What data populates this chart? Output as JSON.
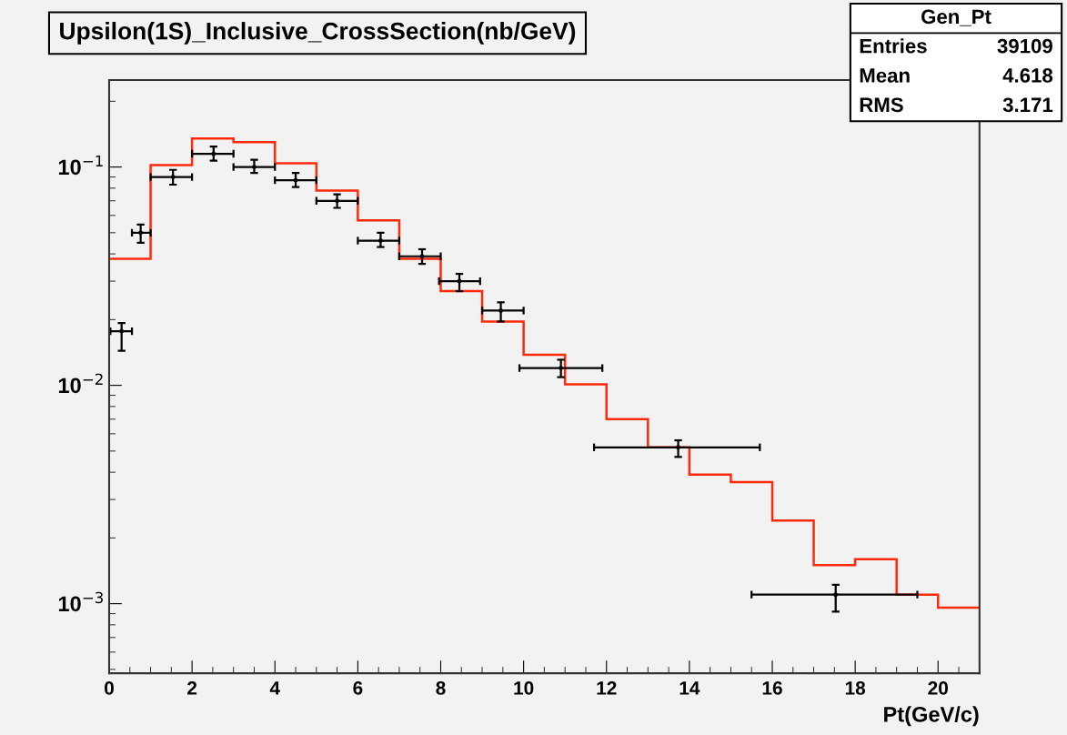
{
  "chart_data": {
    "type": "histogram",
    "title": "Upsilon(1S)_Inclusive_CrossSection(nb/GeV)",
    "xlabel": "Pt(GeV/c)",
    "bins": [
      0,
      1,
      2,
      3,
      4,
      5,
      6,
      7,
      8,
      9,
      10,
      11,
      12,
      13,
      14,
      15,
      16,
      17,
      18,
      19,
      20,
      21
    ],
    "values": [
      0.038,
      0.102,
      0.135,
      0.13,
      0.104,
      0.078,
      0.057,
      0.038,
      0.027,
      0.0196,
      0.0138,
      0.0101,
      0.007,
      0.0052,
      0.0039,
      0.0036,
      0.0024,
      0.0015,
      0.0016,
      0.0011,
      0.00096
    ],
    "color": "#ff2a0a",
    "series": [
      {
        "type": "scatter",
        "color": "#000000",
        "x": [
          0.3,
          0.76,
          1.54,
          2.52,
          3.5,
          4.5,
          5.5,
          6.55,
          7.55,
          8.45,
          9.45,
          10.9,
          13.73,
          17.53
        ],
        "values": [
          0.0177,
          0.05,
          0.09,
          0.115,
          0.1,
          0.087,
          0.07,
          0.046,
          0.039,
          0.03,
          0.022,
          0.012,
          0.0052,
          0.0011
        ],
        "errors": [
          [
            0.0144,
            0.0193
          ],
          [
            0.045,
            0.0545
          ],
          [
            0.083,
            0.097
          ],
          [
            0.107,
            0.124
          ],
          [
            0.094,
            0.108
          ],
          [
            0.081,
            0.094
          ],
          [
            0.065,
            0.075
          ],
          [
            0.043,
            0.05
          ],
          [
            0.036,
            0.042
          ],
          [
            0.027,
            0.0324
          ],
          [
            0.0196,
            0.024
          ],
          [
            0.0109,
            0.0131
          ],
          [
            0.0047,
            0.0056
          ],
          [
            0.00092,
            0.00122
          ]
        ],
        "xerrors": [
          [
            0.03,
            0.55
          ],
          [
            0.55,
            1.0
          ],
          [
            1.0,
            2.0
          ],
          [
            2.0,
            3.0
          ],
          [
            3.0,
            4.0
          ],
          [
            4.0,
            5.0
          ],
          [
            5.0,
            6.0
          ],
          [
            6.0,
            7.0
          ],
          [
            7.0,
            8.0
          ],
          [
            7.96,
            8.95
          ],
          [
            9.0,
            10.0
          ],
          [
            9.9,
            11.9
          ],
          [
            11.7,
            15.7
          ],
          [
            15.5,
            19.5
          ]
        ]
      }
    ],
    "log": "y",
    "xlim": [
      0,
      21
    ],
    "xticks": [
      0,
      2,
      4,
      6,
      8,
      10,
      12,
      14,
      16,
      18,
      20
    ],
    "ylim": [
      0.00048,
      0.25
    ],
    "yticks": [
      {
        "value": 0.001,
        "label": "10$^{−3}$"
      },
      {
        "value": 0.01,
        "label": "10$^{−2}$"
      },
      {
        "value": 0.1,
        "label": "10$^{−1}$"
      }
    ],
    "grid": false,
    "annotations": [
      "Gen_Pt",
      "Entries",
      "39109",
      "Mean",
      "4.618",
      "RMS",
      "3.171"
    ]
  }
}
